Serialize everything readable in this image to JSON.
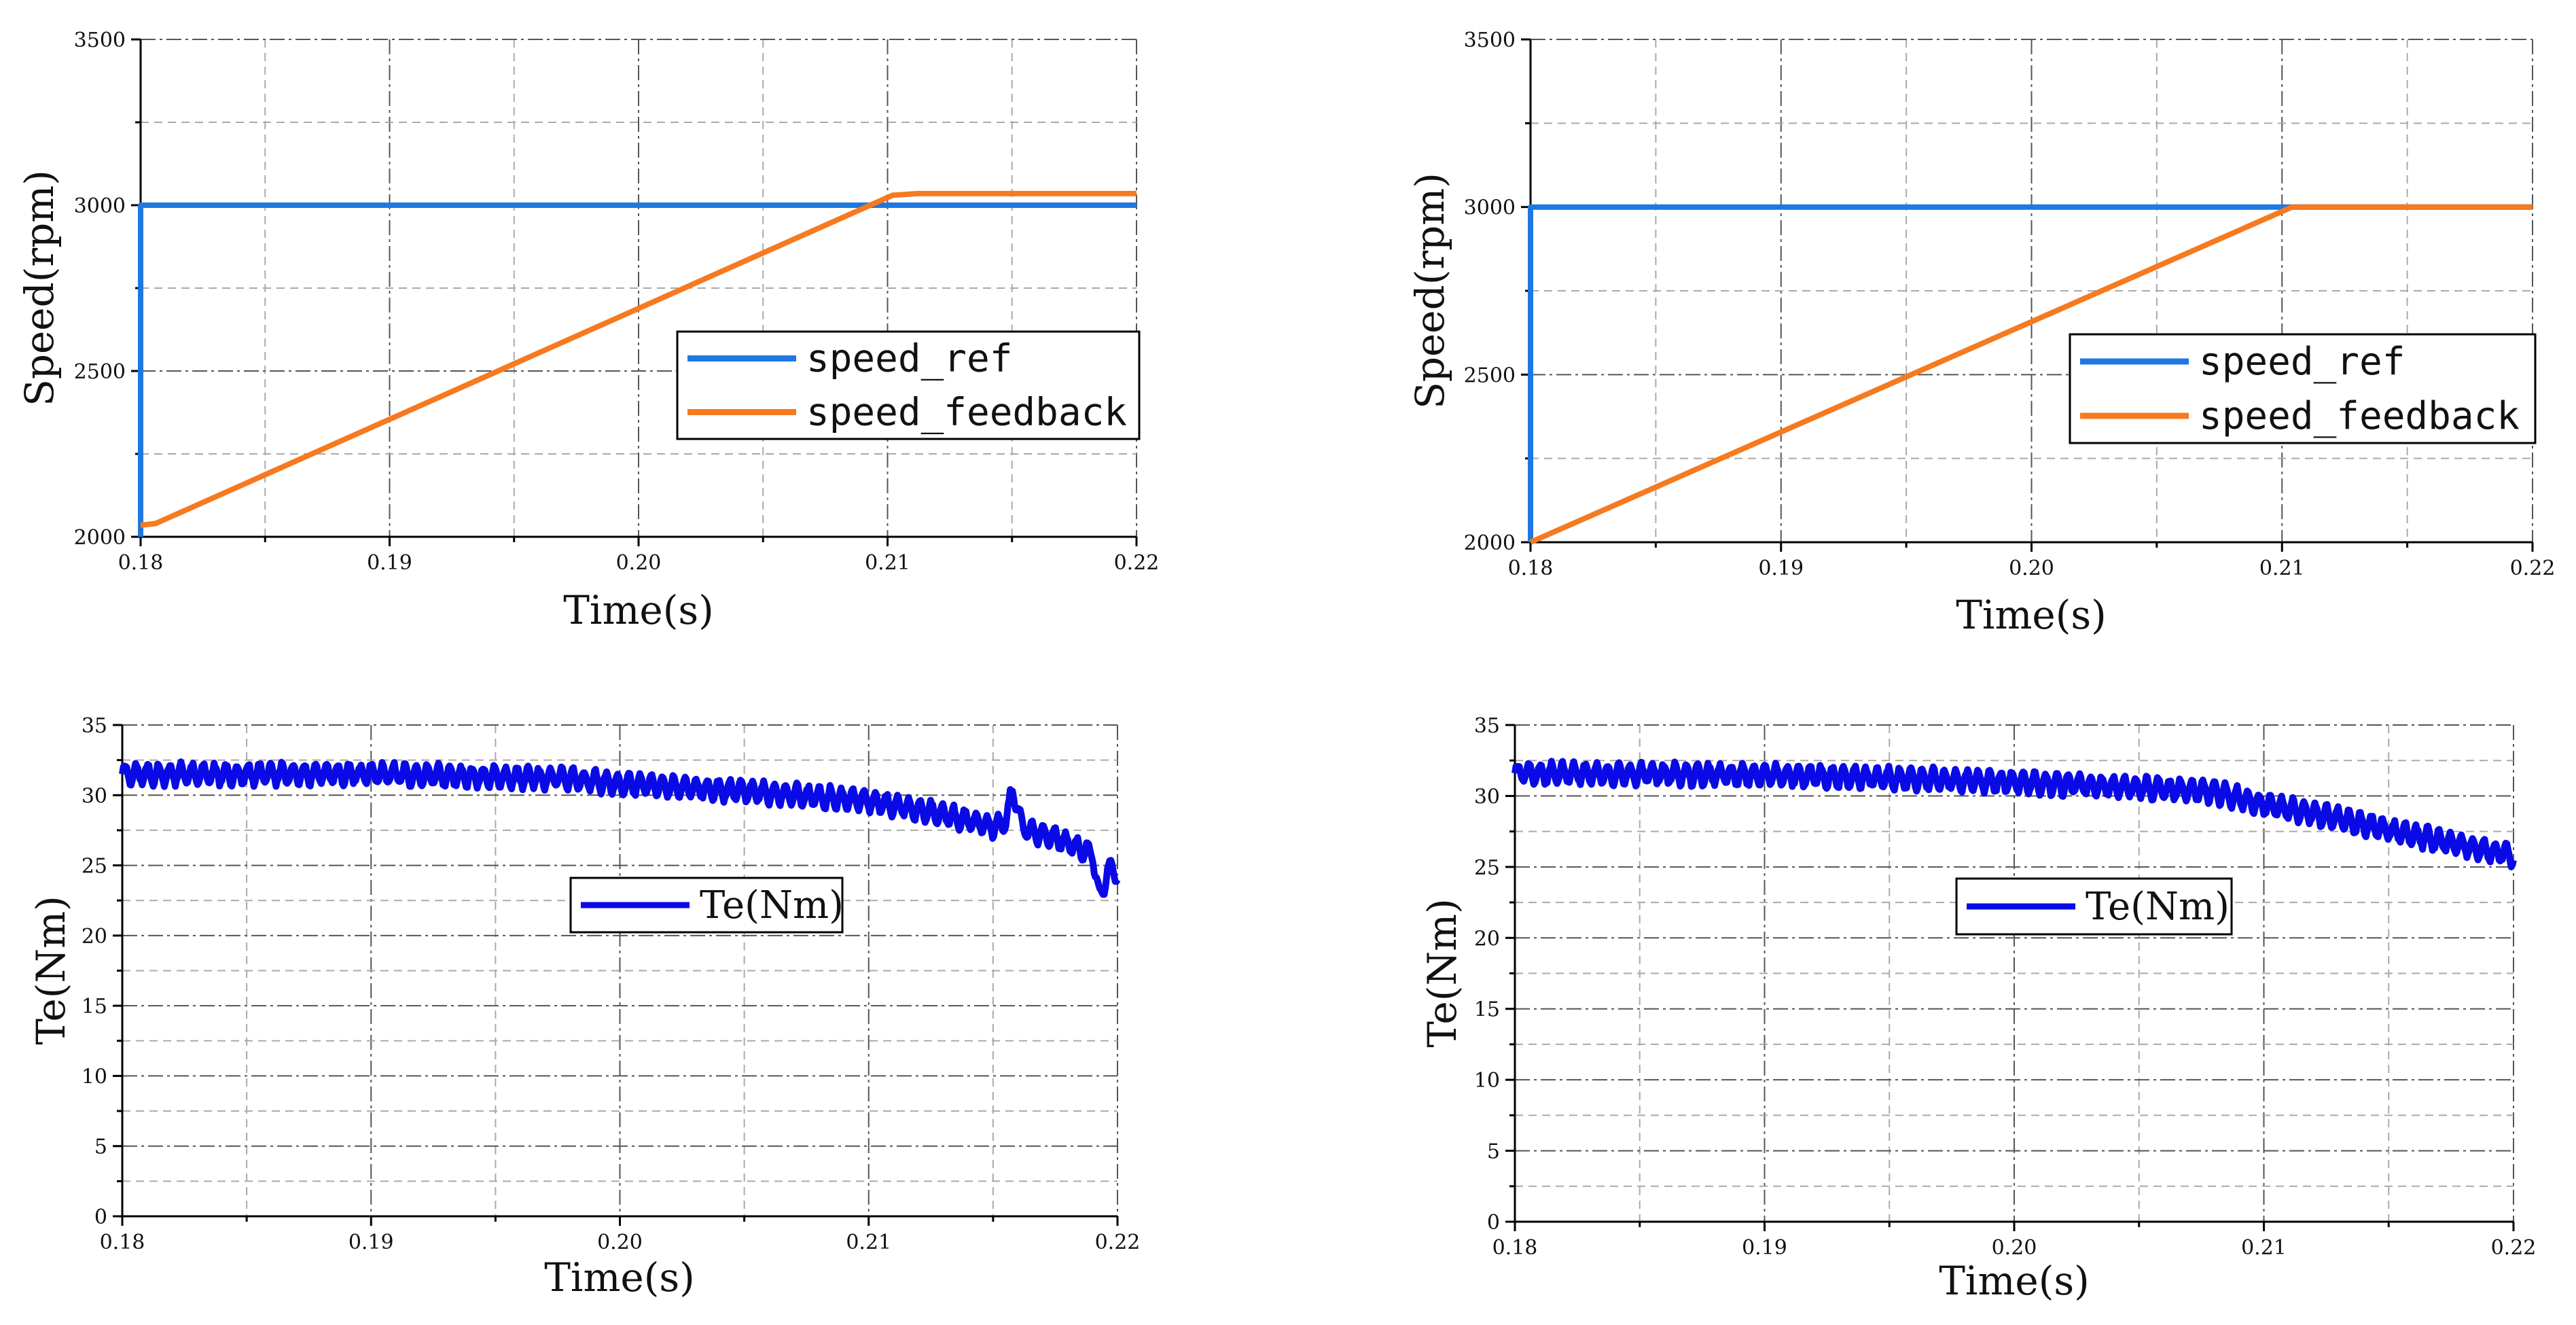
{
  "colors": {
    "speed_ref": "#1f78e0",
    "speed_feedback": "#f57a20",
    "torque": "#0a0ae6",
    "axis": "#000000",
    "grid_major": "#555555",
    "grid_minor": "#aaaaaa"
  },
  "chart_data": [
    {
      "id": "speed-left",
      "type": "line",
      "xlabel": "Time(s)",
      "ylabel": "Speed(rpm)",
      "xlim": [
        0.18,
        0.22
      ],
      "ylim": [
        2000,
        3500
      ],
      "xticks": [
        0.18,
        0.19,
        0.2,
        0.21,
        0.22
      ],
      "xtick_labels": [
        "0.18",
        "0.19",
        "0.20",
        "0.21",
        "0.22"
      ],
      "yticks": [
        2000,
        2500,
        3000,
        3500
      ],
      "ytick_labels": [
        "2000",
        "2500",
        "3000",
        "3500"
      ],
      "grid": true,
      "legend": "center-right",
      "series": [
        {
          "name": "speed_ref",
          "color_key": "speed_ref",
          "x": [
            0.18,
            0.18,
            0.18,
            0.22
          ],
          "y": [
            2000,
            2000,
            3000,
            3000
          ]
        },
        {
          "name": "speed_feedback",
          "color_key": "speed_feedback",
          "x": [
            0.18,
            0.1806,
            0.2102,
            0.2112,
            0.22
          ],
          "y": [
            2035,
            2040,
            3030,
            3035,
            3035
          ]
        }
      ]
    },
    {
      "id": "speed-right",
      "type": "line",
      "xlabel": "Time(s)",
      "ylabel": "Speed(rpm)",
      "xlim": [
        0.18,
        0.22
      ],
      "ylim": [
        2000,
        3500
      ],
      "xticks": [
        0.18,
        0.19,
        0.2,
        0.21,
        0.22
      ],
      "xtick_labels": [
        "0.18",
        "0.19",
        "0.20",
        "0.21",
        "0.22"
      ],
      "yticks": [
        2000,
        2500,
        3000,
        3500
      ],
      "ytick_labels": [
        "2000",
        "2500",
        "3000",
        "3500"
      ],
      "grid": true,
      "legend": "center-right",
      "series": [
        {
          "name": "speed_ref",
          "color_key": "speed_ref",
          "x": [
            0.18,
            0.18,
            0.18,
            0.22
          ],
          "y": [
            2000,
            2000,
            3000,
            3000
          ]
        },
        {
          "name": "speed_feedback",
          "color_key": "speed_feedback",
          "x": [
            0.18,
            0.2104,
            0.22
          ],
          "y": [
            2000,
            3000,
            3000
          ]
        }
      ]
    },
    {
      "id": "torque-left",
      "type": "line",
      "xlabel": "Time(s)",
      "ylabel": "Te(Nm)",
      "xlim": [
        0.18,
        0.22
      ],
      "ylim": [
        0,
        35
      ],
      "xticks": [
        0.18,
        0.19,
        0.2,
        0.21,
        0.22
      ],
      "xtick_labels": [
        "0.18",
        "0.19",
        "0.20",
        "0.21",
        "0.22"
      ],
      "yticks": [
        0,
        5,
        10,
        15,
        20,
        25,
        30,
        35
      ],
      "ytick_labels": [
        "0",
        "5",
        "10",
        "15",
        "20",
        "25",
        "30",
        "35"
      ],
      "grid": true,
      "legend": "center",
      "series": [
        {
          "name": "Te(Nm)",
          "color_key": "torque",
          "x": [
            0.18,
            0.185,
            0.19,
            0.195,
            0.198,
            0.2,
            0.205,
            0.21,
            0.2125,
            0.215,
            0.2155,
            0.2158,
            0.2162,
            0.2175,
            0.219,
            0.2193,
            0.2196,
            0.22
          ],
          "y": [
            31.5,
            31.5,
            31.5,
            31.3,
            31.2,
            30.8,
            30.3,
            29.6,
            28.8,
            27.8,
            28.0,
            30.5,
            27.6,
            27.0,
            25.8,
            22.5,
            24.8,
            24.5
          ],
          "ripple_amplitude": 0.7,
          "ripple_period": 0.00045
        }
      ]
    },
    {
      "id": "torque-right",
      "type": "line",
      "xlabel": "Time(s)",
      "ylabel": "Te(Nm)",
      "xlim": [
        0.18,
        0.22
      ],
      "ylim": [
        0,
        35
      ],
      "xticks": [
        0.18,
        0.19,
        0.2,
        0.21,
        0.22
      ],
      "xtick_labels": [
        "0.18",
        "0.19",
        "0.20",
        "0.21",
        "0.22"
      ],
      "yticks": [
        0,
        5,
        10,
        15,
        20,
        25,
        30,
        35
      ],
      "ytick_labels": [
        "0",
        "5",
        "10",
        "15",
        "20",
        "25",
        "30",
        "35"
      ],
      "grid": true,
      "legend": "center",
      "series": [
        {
          "name": "Te(Nm)",
          "color_key": "torque",
          "x": [
            0.18,
            0.19,
            0.2,
            0.205,
            0.208,
            0.21,
            0.213,
            0.216,
            0.22
          ],
          "y": [
            31.6,
            31.5,
            31.0,
            30.6,
            30.3,
            29.4,
            28.4,
            27.2,
            25.8
          ],
          "ripple_amplitude": 0.7,
          "ripple_period": 0.00045
        }
      ]
    }
  ]
}
